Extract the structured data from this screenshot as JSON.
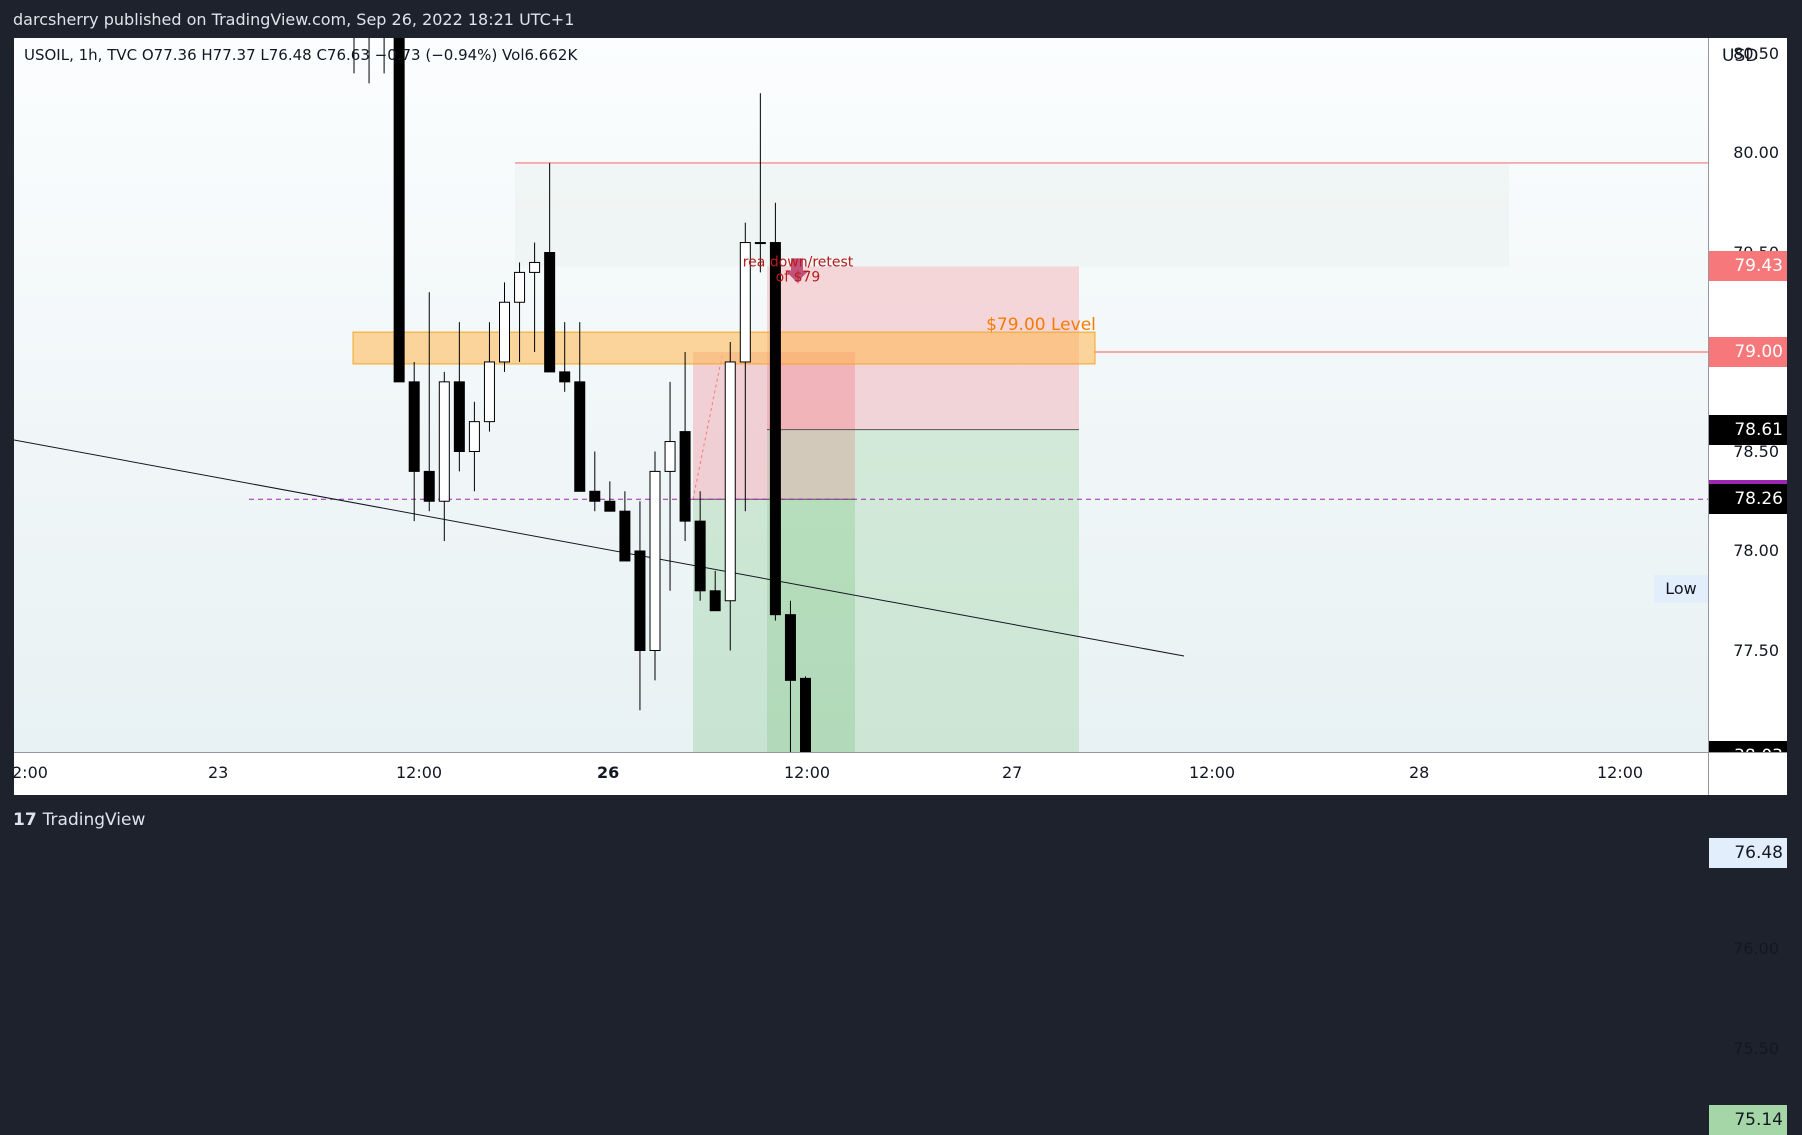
{
  "header": {
    "publisher_line": "darcsherry published on TradingView.com, Sep 26, 2022 18:21 UTC+1"
  },
  "legend": {
    "ohlc_line": "USOIL, 1h, TVC  O77.36  H77.37  L76.48  C76.63  −0.73 (−0.94%)  Vol6.662K"
  },
  "footer": {
    "logo_mark": "17",
    "brand": "TradingView"
  },
  "price_axis": {
    "currency": "USD",
    "ticks": [
      "80.50",
      "80.00",
      "79.50",
      "79.00",
      "78.50",
      "78.00",
      "77.50",
      "77.00",
      "76.50",
      "76.00",
      "75.50"
    ],
    "tags": [
      {
        "label": "79.43",
        "price": 79.43,
        "color": "#f7787a",
        "text_color": "#ffffff"
      },
      {
        "label": "79.00",
        "price": 79.0,
        "color": "#f7787a",
        "text_color": "#ffffff"
      },
      {
        "label": "78.61",
        "price": 78.61,
        "color": "#000000",
        "text_color": "#ffffff"
      },
      {
        "label": "78.28",
        "price": 78.28,
        "color": "#9c27b0",
        "text_color": "#ffffff"
      },
      {
        "label": "78.26",
        "price": 78.26,
        "color": "#000000",
        "text_color": "#ffffff"
      },
      {
        "label": "38:03",
        "price": 76.97,
        "color": "#000000",
        "text_color": "#ffffff"
      },
      {
        "label": "76.48",
        "price": 76.48,
        "color": "#e3eefc",
        "text_color": "#131722"
      },
      {
        "label": "75.14",
        "price": 75.14,
        "color": "#a5d6a7",
        "text_color": "#131722"
      }
    ],
    "low_label": "Low"
  },
  "time_axis": {
    "ticks": [
      {
        "label": "2:00",
        "bold": false
      },
      {
        "label": "23",
        "bold": false
      },
      {
        "label": "12:00",
        "bold": false
      },
      {
        "label": "26",
        "bold": true
      },
      {
        "label": "12:00",
        "bold": false
      },
      {
        "label": "27",
        "bold": false
      },
      {
        "label": "12:00",
        "bold": false
      },
      {
        "label": "28",
        "bold": false
      },
      {
        "label": "12:00",
        "bold": false
      }
    ]
  },
  "annotations": {
    "level_text": "$79.00 Level",
    "note_line1": "rea down/retest",
    "note_line2": "of $79",
    "level_color": "#f57c00",
    "note_color": "#b71c1c"
  },
  "chart_data": {
    "type": "candlestick",
    "title": "USOIL, 1h, TVC",
    "ylabel": "USD",
    "ylim": [
      75.0,
      80.95
    ],
    "up_color": "#ffffff",
    "down_color": "#000000",
    "candles": [
      {
        "o": 80.95,
        "h": 80.95,
        "l": 80.4,
        "c": 80.7
      },
      {
        "o": 80.7,
        "h": 80.95,
        "l": 80.35,
        "c": 80.6
      },
      {
        "o": 80.6,
        "h": 80.9,
        "l": 80.4,
        "c": 80.7
      },
      {
        "o": 80.7,
        "h": 80.75,
        "l": 78.85,
        "c": 78.85
      },
      {
        "o": 78.85,
        "h": 78.95,
        "l": 78.15,
        "c": 78.4
      },
      {
        "o": 78.4,
        "h": 79.3,
        "l": 78.2,
        "c": 78.25
      },
      {
        "o": 78.25,
        "h": 78.9,
        "l": 78.05,
        "c": 78.85
      },
      {
        "o": 78.85,
        "h": 79.15,
        "l": 78.4,
        "c": 78.5
      },
      {
        "o": 78.5,
        "h": 78.75,
        "l": 78.3,
        "c": 78.65
      },
      {
        "o": 78.65,
        "h": 79.15,
        "l": 78.6,
        "c": 78.95
      },
      {
        "o": 78.95,
        "h": 79.35,
        "l": 78.9,
        "c": 79.25
      },
      {
        "o": 79.25,
        "h": 79.45,
        "l": 78.95,
        "c": 79.4
      },
      {
        "o": 79.4,
        "h": 79.55,
        "l": 79.0,
        "c": 79.45
      },
      {
        "o": 79.5,
        "h": 79.95,
        "l": 78.9,
        "c": 78.9
      },
      {
        "o": 78.9,
        "h": 79.15,
        "l": 78.8,
        "c": 78.85
      },
      {
        "o": 78.85,
        "h": 79.15,
        "l": 78.3,
        "c": 78.3
      },
      {
        "o": 78.3,
        "h": 78.5,
        "l": 78.2,
        "c": 78.25
      },
      {
        "o": 78.25,
        "h": 78.35,
        "l": 78.2,
        "c": 78.2
      },
      {
        "o": 78.2,
        "h": 78.3,
        "l": 78.0,
        "c": 77.95
      },
      {
        "o": 78.0,
        "h": 78.25,
        "l": 77.2,
        "c": 77.5
      },
      {
        "o": 77.5,
        "h": 78.5,
        "l": 77.35,
        "c": 78.4
      },
      {
        "o": 78.4,
        "h": 78.85,
        "l": 77.8,
        "c": 78.55
      },
      {
        "o": 78.6,
        "h": 79.0,
        "l": 78.05,
        "c": 78.15
      },
      {
        "o": 78.15,
        "h": 78.3,
        "l": 77.75,
        "c": 77.8
      },
      {
        "o": 77.8,
        "h": 77.9,
        "l": 77.7,
        "c": 77.7
      },
      {
        "o": 77.75,
        "h": 79.05,
        "l": 77.5,
        "c": 78.95
      },
      {
        "o": 78.95,
        "h": 79.65,
        "l": 78.2,
        "c": 79.55
      },
      {
        "o": 79.55,
        "h": 80.3,
        "l": 79.4,
        "c": 79.55
      },
      {
        "o": 79.55,
        "h": 79.75,
        "l": 77.65,
        "c": 77.68
      },
      {
        "o": 77.68,
        "h": 77.75,
        "l": 76.95,
        "c": 77.35
      },
      {
        "o": 77.36,
        "h": 77.37,
        "l": 76.48,
        "c": 76.63
      }
    ],
    "levels": [
      {
        "name": "$79.00 Level",
        "price": 79.0
      },
      {
        "price": 79.95
      },
      {
        "price": 78.26
      },
      {
        "price": 76.48
      }
    ],
    "zones": [
      {
        "kind": "orange-band",
        "top": 79.1,
        "bottom": 78.95
      },
      {
        "kind": "position-1",
        "stop": 79.0,
        "entry": 78.26,
        "target": 75.08
      },
      {
        "kind": "position-2",
        "stop": 79.43,
        "entry": 78.61,
        "target": 75.14
      },
      {
        "kind": "neutral-zone",
        "top": 79.95,
        "bottom": 79.43
      }
    ]
  }
}
